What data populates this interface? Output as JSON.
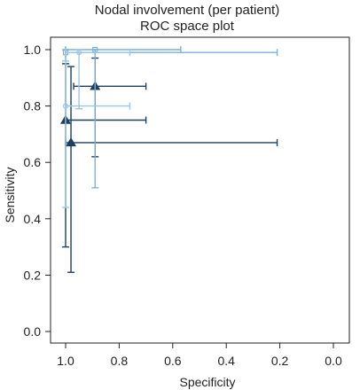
{
  "chart_data": {
    "type": "scatter",
    "title": [
      "Nodal involvement (per patient)",
      "ROC space plot"
    ],
    "xlabel": "Specificity",
    "ylabel": "Sensitivity",
    "x_reversed": true,
    "xlim": [
      1.0,
      0.0
    ],
    "ylim": [
      0.0,
      1.0
    ],
    "xticks": [
      "1.0",
      "0.8",
      "0.6",
      "0.4",
      "0.2",
      "0.0"
    ],
    "yticks": [
      "0.0",
      "0.2",
      "0.4",
      "0.6",
      "0.8",
      "1.0"
    ],
    "grid": false,
    "error_bars": "95% CI (horizontal = specificity, vertical = sensitivity)",
    "series": [
      {
        "marker": "triangle",
        "color": "#1f3f5f",
        "points": [
          {
            "spec": 0.89,
            "sens": 0.87,
            "spec_ci": [
              0.7,
              0.97
            ],
            "sens_ci": [
              0.62,
              0.97
            ]
          },
          {
            "spec": 1.0,
            "sens": 0.75,
            "spec_ci": [
              0.7,
              1.0
            ],
            "sens_ci": [
              0.3,
              0.95
            ]
          },
          {
            "spec": 0.98,
            "sens": 0.67,
            "spec_ci": [
              0.21,
              1.0
            ],
            "sens_ci": [
              0.21,
              0.94
            ]
          }
        ]
      },
      {
        "marker": "square",
        "color": "#7ab0dc",
        "points": [
          {
            "spec": 1.0,
            "sens": 0.99,
            "spec_ci": [
              0.21,
              1.0
            ],
            "sens_ci": [
              0.96,
              1.0
            ]
          },
          {
            "spec": 0.89,
            "sens": 1.0,
            "spec_ci": [
              0.57,
              1.0
            ],
            "sens_ci": [
              0.51,
              1.0
            ]
          }
        ]
      },
      {
        "marker": "circle",
        "color": "#9cc6e6",
        "points": [
          {
            "spec": 0.95,
            "sens": 0.99,
            "spec_ci": [
              0.76,
              1.0
            ],
            "sens_ci": [
              0.79,
              1.0
            ]
          },
          {
            "spec": 1.0,
            "sens": 0.8,
            "spec_ci": [
              0.76,
              1.0
            ],
            "sens_ci": [
              0.44,
              0.96
            ]
          }
        ]
      }
    ]
  }
}
